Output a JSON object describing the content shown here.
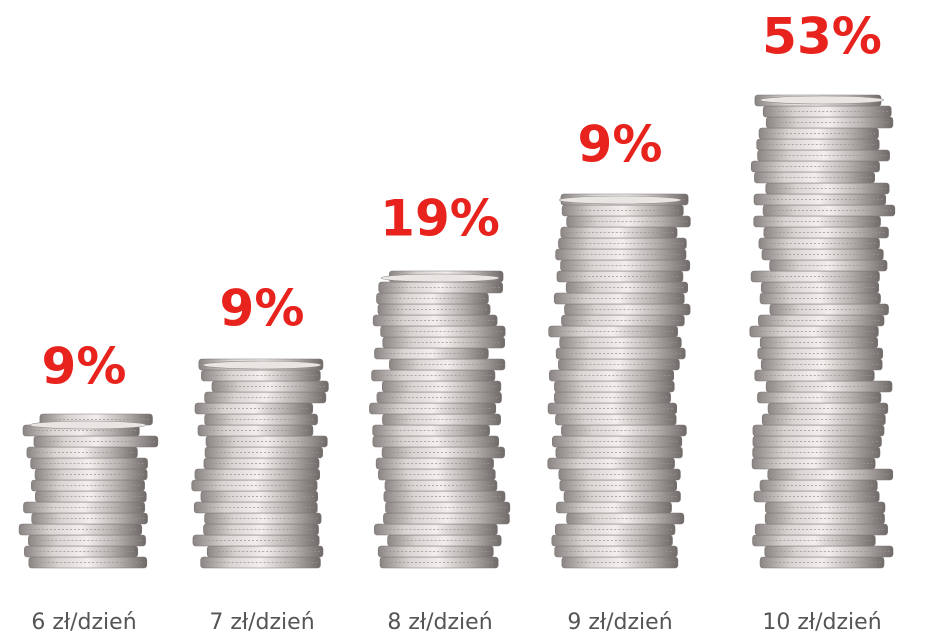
{
  "items": [
    {
      "percent": "9%",
      "label": "6 zł/dzień"
    },
    {
      "percent": "9%",
      "label": "7 zł/dzień"
    },
    {
      "percent": "19%",
      "label": "8 zł/dzień"
    },
    {
      "percent": "9%",
      "label": "9 zł/dzień"
    },
    {
      "percent": "53%",
      "label": "10 zł/dzień"
    }
  ]
}
